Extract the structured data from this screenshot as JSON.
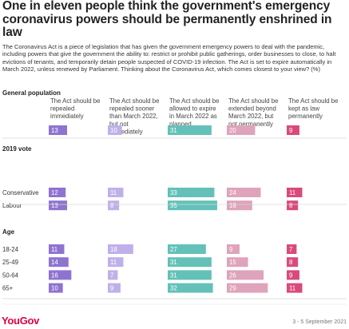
{
  "title": "One in eleven people think the government's emergency coronavirus powers should be permanently enshrined in law",
  "intro": "The Coronavirus Act is a piece of legislation that has given the government emergency powers to deal with the pandemic, including powers that give the government the ability to: restrict or prohibit public gatherings, order businesses to close, to halt evictions of tenants, and temporarily detain people suspected of COVID-19 infection. The Act is set to expire automatically in March 2022, unless renewed by Parliament. Thinking about the Coronavirus Act, which comes closest to your view? (%)",
  "brand": "YouGov",
  "date_range": "3 - 5 September 2021",
  "chart_data": {
    "type": "bar",
    "layout": "grouped-horizontal-bars",
    "series": [
      {
        "name": "The Act should be repealed immediately",
        "color": "#8f73d0"
      },
      {
        "name": "The Act should be repealed sooner than March 2022, but not immediately",
        "color": "#c0b0ea"
      },
      {
        "name": "The Act should be allowed to expire in March 2022 as planned",
        "color": "#63c1b9"
      },
      {
        "name": "The Act should be extended beyond March 2022, but not permanently",
        "color": "#dfa3bb"
      },
      {
        "name": "The Act should be kept as law permanently",
        "color": "#d94a7c"
      }
    ],
    "groups": [
      {
        "name": "General population",
        "rows": [
          {
            "label": "",
            "values": [
              13,
              10,
              31,
              20,
              9
            ]
          }
        ]
      },
      {
        "name": "2019 vote",
        "rows": [
          {
            "label": "Conservative",
            "values": [
              12,
              11,
              33,
              24,
              11
            ]
          },
          {
            "label": "Labour",
            "values": [
              13,
              8,
              35,
              18,
              8
            ]
          }
        ]
      },
      {
        "name": "Age",
        "rows": [
          {
            "label": "18-24",
            "values": [
              11,
              18,
              27,
              9,
              7
            ]
          },
          {
            "label": "25-49",
            "values": [
              14,
              11,
              31,
              15,
              8
            ]
          },
          {
            "label": "50-64",
            "values": [
              16,
              7,
              31,
              26,
              9
            ]
          },
          {
            "label": "65+",
            "values": [
              10,
              9,
              32,
              29,
              11
            ]
          }
        ]
      }
    ],
    "xlim": [
      0,
      40
    ],
    "grid": false,
    "legend": "column-headers"
  }
}
